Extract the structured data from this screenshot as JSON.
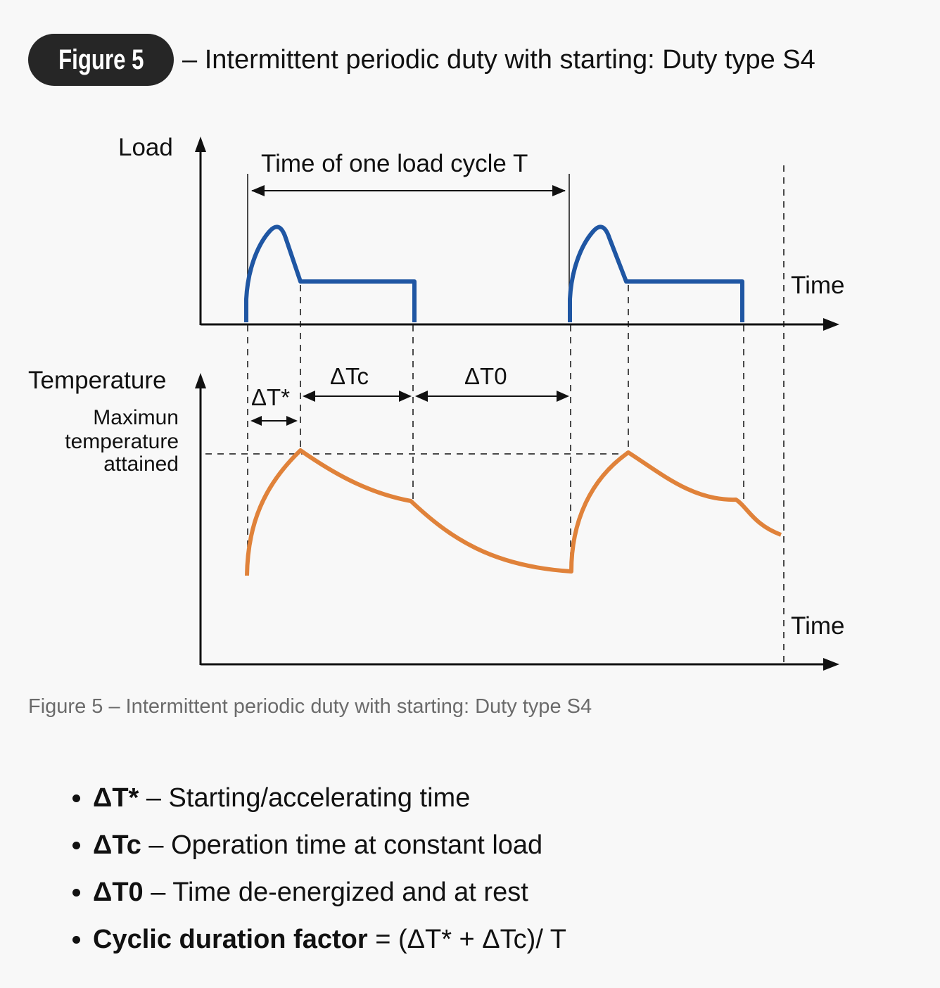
{
  "header": {
    "badge": "Figure 5",
    "title": "– Intermittent periodic duty with starting: Duty type S4"
  },
  "diagram": {
    "load_axis_label": "Load",
    "time_label_top": "Time",
    "cycle_label": "Time of one load cycle T",
    "temperature_axis_label": "Temperature",
    "max_temp_label": [
      "Maximun",
      "temperature",
      "attained"
    ],
    "delta_t_star": "ΔT*",
    "delta_tc": "ΔTc",
    "delta_t0": "ΔT0",
    "time_label_bottom": "Time",
    "colors": {
      "load": "#1f56a3",
      "temperature": "#e0823a",
      "axis": "#111111"
    }
  },
  "caption": "Figure 5 – Intermittent periodic duty with starting: Duty type S4",
  "definitions": [
    {
      "term": "ΔT*",
      "text": " – Starting/accelerating time"
    },
    {
      "term": "ΔTc",
      "text": " – Operation time at constant load"
    },
    {
      "term": "ΔT0",
      "text": " – Time de-energized and at rest"
    },
    {
      "term": "Cyclic duration factor",
      "text": " = (ΔT* + ΔTc)/ T"
    }
  ]
}
